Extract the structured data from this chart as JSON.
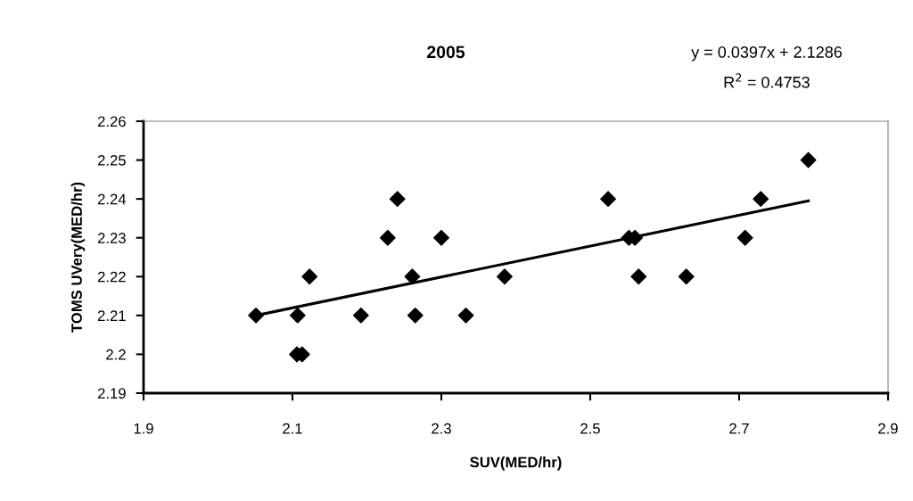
{
  "chart_data": {
    "type": "scatter",
    "title": "2005",
    "xlabel": "SUV(MED/hr)",
    "ylabel": "TOMS UVery(MED/hr)",
    "series": [
      {
        "color": "#000000",
        "marker": "diamond",
        "x": [
          2.051,
          2.107,
          2.106,
          2.113,
          2.123,
          2.192,
          2.228,
          2.241,
          2.261,
          2.265,
          2.3,
          2.333,
          2.385,
          2.524,
          2.552,
          2.56,
          2.565,
          2.629,
          2.708,
          2.729,
          2.793
        ],
        "values": [
          2.21,
          2.21,
          2.2,
          2.2,
          2.22,
          2.21,
          2.23,
          2.24,
          2.22,
          2.21,
          2.23,
          2.21,
          2.22,
          2.24,
          2.23,
          2.23,
          2.22,
          2.22,
          2.23,
          2.24,
          2.25
        ]
      },
      {
        "type": "line",
        "color": "#000000",
        "marker": "none",
        "line_style": "solid",
        "x": [
          2.051,
          2.793
        ],
        "values": [
          2.21,
          2.2395
        ]
      }
    ],
    "annotations": [
      "y = 0.0397x + 2.1286",
      "R$^{2}$ = 0.4753"
    ],
    "xlim": [
      1.9,
      2.9
    ],
    "xticks": [
      1.9,
      2.1,
      2.3,
      2.5,
      2.7,
      2.9
    ],
    "ylim": [
      2.19,
      2.26
    ],
    "yticks": [
      2.19,
      2.2,
      2.21,
      2.22,
      2.23,
      2.24,
      2.25,
      2.26
    ],
    "grid": false,
    "legend": false
  }
}
